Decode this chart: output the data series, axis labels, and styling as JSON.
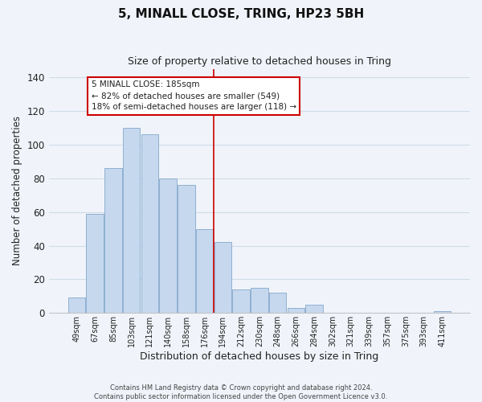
{
  "title": "5, MINALL CLOSE, TRING, HP23 5BH",
  "subtitle": "Size of property relative to detached houses in Tring",
  "xlabel": "Distribution of detached houses by size in Tring",
  "ylabel": "Number of detached properties",
  "bar_labels": [
    "49sqm",
    "67sqm",
    "85sqm",
    "103sqm",
    "121sqm",
    "140sqm",
    "158sqm",
    "176sqm",
    "194sqm",
    "212sqm",
    "230sqm",
    "248sqm",
    "266sqm",
    "284sqm",
    "302sqm",
    "321sqm",
    "339sqm",
    "357sqm",
    "375sqm",
    "393sqm",
    "411sqm"
  ],
  "bar_values": [
    9,
    59,
    86,
    110,
    106,
    80,
    76,
    50,
    42,
    14,
    15,
    12,
    3,
    5,
    0,
    0,
    0,
    0,
    0,
    0,
    1
  ],
  "bar_color": "#c6d8ee",
  "bar_edge_color": "#8fb0d0",
  "grid_color": "#d0dce8",
  "annotation_line_color": "#cc0000",
  "annotation_box_text": "5 MINALL CLOSE: 185sqm\n← 82% of detached houses are smaller (549)\n18% of semi-detached houses are larger (118) →",
  "ylim": [
    0,
    145
  ],
  "footer": "Contains HM Land Registry data © Crown copyright and database right 2024.\nContains public sector information licensed under the Open Government Licence v3.0.",
  "background_color": "#f0f4fa"
}
